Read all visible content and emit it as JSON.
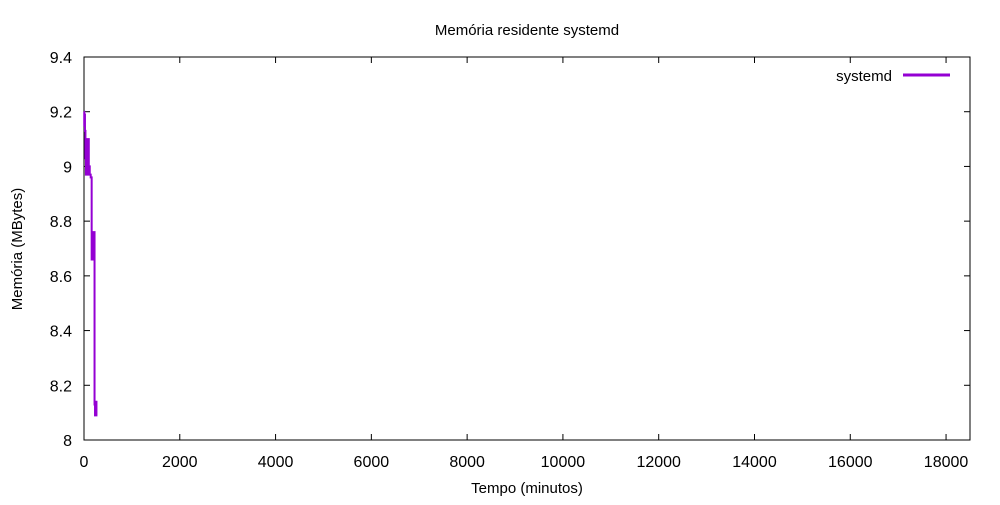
{
  "chart_data": {
    "type": "line",
    "title": "Memória residente systemd",
    "xlabel": "Tempo (minutos)",
    "ylabel": "Memória (MBytes)",
    "xlim": [
      0,
      18500
    ],
    "ylim": [
      8,
      9.4
    ],
    "xticks": [
      0,
      2000,
      4000,
      6000,
      8000,
      10000,
      12000,
      14000,
      16000,
      18000
    ],
    "xtick_labels": [
      "0",
      "2000",
      "4000",
      "6000",
      "8000",
      "10000",
      "12000",
      "14000",
      "16000",
      "18000"
    ],
    "yticks": [
      8,
      8.2,
      8.4,
      8.6,
      8.8,
      9,
      9.2,
      9.4
    ],
    "ytick_labels": [
      "8",
      "8.2",
      "8.4",
      "8.6",
      "8.8",
      "9",
      "9.2",
      "9.4"
    ],
    "grid": false,
    "legend_position": "top-right",
    "series": [
      {
        "name": "systemd",
        "color": "#9400d3",
        "x": [
          0,
          5,
          5,
          10,
          10,
          20,
          20,
          30,
          30,
          40,
          40,
          50,
          50,
          60,
          60,
          70,
          70,
          80,
          80,
          90,
          90,
          100,
          100,
          110,
          110,
          120,
          120,
          130,
          130,
          140,
          140,
          150,
          150,
          160,
          160,
          170,
          170,
          180,
          180,
          190,
          190,
          200,
          200,
          210,
          210,
          220,
          220,
          230,
          230,
          240,
          240,
          250,
          250,
          260,
          260,
          270,
          270,
          280
        ],
        "y": [
          9.2,
          9.2,
          9.15,
          9.15,
          9.19,
          9.19,
          9.13,
          9.13,
          9.03,
          9.03,
          8.97,
          8.97,
          9.1,
          9.1,
          8.98,
          8.98,
          9.1,
          9.1,
          8.97,
          8.97,
          9.1,
          9.1,
          8.97,
          8.97,
          9.0,
          9.0,
          8.97,
          8.97,
          8.97,
          8.97,
          8.96,
          8.96,
          8.96,
          8.96,
          8.66,
          8.66,
          8.76,
          8.76,
          8.66,
          8.66,
          8.76,
          8.76,
          8.66,
          8.66,
          8.76,
          8.76,
          8.13,
          8.13,
          8.09,
          8.09,
          8.09,
          8.09,
          8.14,
          8.14,
          8.09,
          8.09,
          8.09,
          8.09
        ]
      }
    ]
  }
}
